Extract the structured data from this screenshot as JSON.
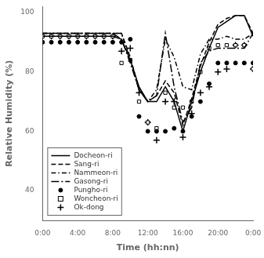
{
  "chart_data": {
    "type": "line",
    "xlabel": "Time (hh:nn)",
    "ylabel": "Relative Humidity (%)",
    "x": [
      0,
      1,
      2,
      3,
      4,
      5,
      6,
      7,
      8,
      9,
      10,
      11,
      12,
      13,
      14,
      15,
      16,
      17,
      18,
      19,
      20,
      21,
      22,
      23,
      24
    ],
    "series": [
      {
        "name": "Docheon-ri",
        "type": "line",
        "color": "black",
        "line_style": "solid",
        "values": [
          92,
          92,
          92,
          92,
          92,
          92,
          92,
          92,
          92,
          91,
          84,
          75,
          70,
          70,
          75,
          70,
          60,
          70,
          80,
          88,
          95,
          97,
          99,
          99,
          92
        ]
      },
      {
        "name": "Sang-ri",
        "type": "line",
        "color": "black",
        "line_style": "dashed",
        "values": [
          93,
          93,
          93,
          93,
          93,
          93,
          93,
          93,
          93,
          93,
          85,
          74,
          70,
          72,
          77,
          73,
          62,
          71,
          82,
          90,
          96,
          98,
          99,
          99,
          93
        ]
      },
      {
        "name": "Nammeon-ri",
        "type": "line",
        "color": "black",
        "line_style": "dashdot",
        "values": [
          93,
          93,
          93,
          93,
          93,
          93,
          93,
          93,
          93,
          93,
          84,
          74,
          70,
          74,
          91,
          85,
          75,
          74,
          86,
          91,
          91,
          92,
          91,
          91,
          93
        ]
      },
      {
        "name": "Gasong-ri",
        "type": "line",
        "color": "black",
        "line_style": "longdashdot",
        "values": [
          93,
          93,
          93,
          93,
          93,
          93,
          93,
          93,
          93,
          91,
          83,
          74,
          70,
          72,
          93,
          75,
          63,
          68,
          83,
          87,
          88,
          88,
          88,
          88,
          93
        ]
      },
      {
        "name": "Pungho-ri",
        "type": "scatter",
        "color": "black",
        "marker": "circle",
        "values": [
          90,
          90,
          90,
          90,
          90,
          90,
          90,
          90,
          90,
          90,
          91,
          65,
          60,
          60,
          60,
          61,
          60,
          65,
          70,
          76,
          83,
          83,
          83,
          83,
          83
        ]
      },
      {
        "name": "Woncheon-ri",
        "type": "scatter",
        "color": "black",
        "marker": "square-open",
        "values": [
          92,
          92,
          92,
          92,
          92,
          92,
          92,
          92,
          92,
          83,
          84,
          70,
          63,
          61,
          73,
          68,
          68,
          70,
          80,
          88,
          89,
          89,
          89,
          89,
          81
        ]
      },
      {
        "name": "Ok-dong",
        "type": "scatter",
        "color": "black",
        "marker": "plus",
        "values": [
          92,
          92,
          92,
          92,
          92,
          92,
          92,
          92,
          92,
          87,
          88,
          73,
          63,
          57,
          70,
          70,
          58,
          66,
          73,
          75,
          80,
          81,
          89,
          89,
          81
        ]
      }
    ],
    "xlim": [
      0,
      24
    ],
    "xticks": [
      {
        "value": 0,
        "label": "0:00"
      },
      {
        "value": 4,
        "label": "4:00"
      },
      {
        "value": 8,
        "label": "8:00"
      },
      {
        "value": 12,
        "label": "12:00"
      },
      {
        "value": 16,
        "label": "16:00"
      },
      {
        "value": 20,
        "label": "20:00"
      },
      {
        "value": 24,
        "label": "0:00"
      }
    ],
    "ylim": [
      30,
      102
    ],
    "yticks": [
      40,
      60,
      80,
      100
    ],
    "grid": false,
    "legend": "lower left"
  }
}
